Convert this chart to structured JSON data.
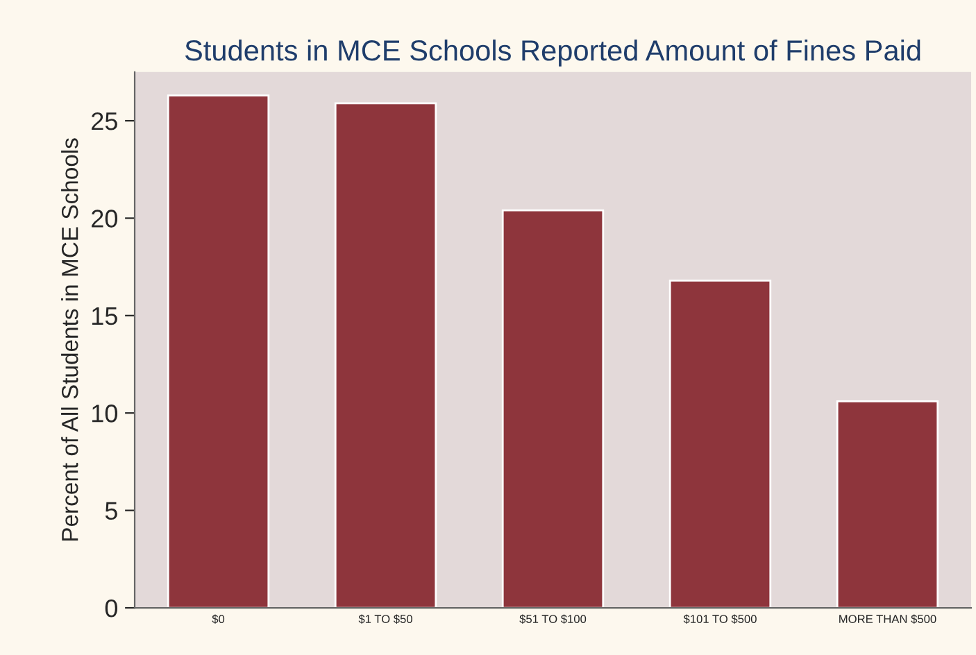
{
  "chart_data": {
    "type": "bar",
    "title": "Students in MCE Schools Reported Amount of Fines Paid",
    "ylabel": "Percent of All Students in MCE Schools",
    "categories": [
      "$0",
      "$1 TO $50",
      "$51 TO $100",
      "$101 TO $500",
      "MORE THAN $500"
    ],
    "values": [
      26.3,
      25.9,
      20.4,
      16.8,
      10.6
    ],
    "color": "#8e353c",
    "ylim": [
      0,
      27.5
    ],
    "yticks": [
      0,
      5,
      10,
      15,
      20,
      25
    ],
    "grid": false,
    "legend": false
  }
}
